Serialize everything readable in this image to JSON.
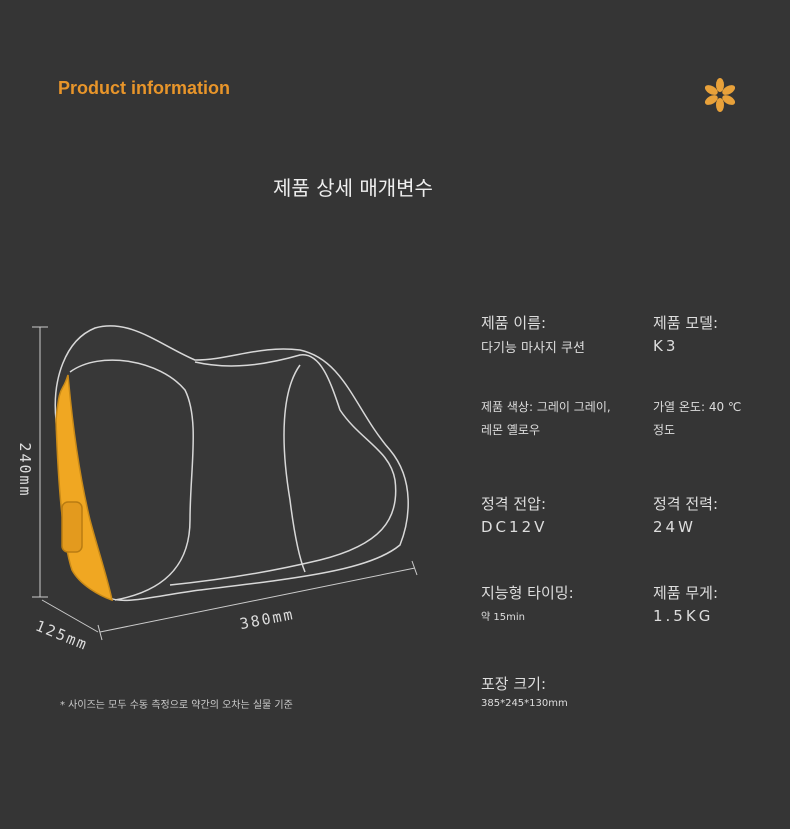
{
  "header": {
    "title": "Product information"
  },
  "heading": "제품 상세 매개변수",
  "dimensions": {
    "height": "240mm",
    "depth": "125mm",
    "width": "380mm"
  },
  "note": "* 사이즈는 모두 수동 측정으로 약간의 오차는 실물 기준",
  "specs": [
    {
      "label": "제품 이름:",
      "value": "다기능 마사지 쿠션"
    },
    {
      "label": "제품 모델:",
      "value": "K3"
    },
    {
      "text": "제품 색상: 그레이 그레이, 레몬 옐로우"
    },
    {
      "text": "가열 온도: 40 ℃ 정도"
    },
    {
      "label": "정격 전압:",
      "value": "DC12V"
    },
    {
      "label": "정격 전력:",
      "value": "24W"
    },
    {
      "label": "지능형 타이밍:",
      "value": "약 15min"
    },
    {
      "label": "제품 무게:",
      "value": "1.5KG"
    },
    {
      "label": "포장 크기:",
      "value": "385*245*130mm"
    }
  ]
}
